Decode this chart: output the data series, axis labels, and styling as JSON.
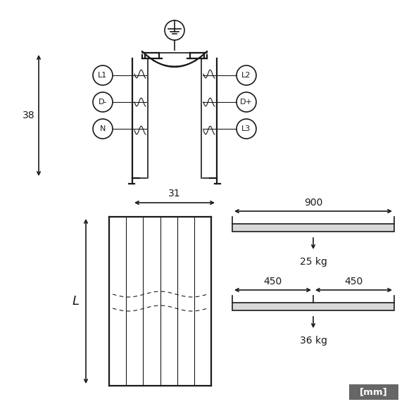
{
  "bg_color": "#ffffff",
  "line_color": "#1a1a1a",
  "mm_box_color": "#666666",
  "mm_text_color": "#ffffff",
  "labels_left": [
    "L1",
    "D-",
    "N"
  ],
  "labels_right": [
    "L2",
    "D+",
    "L3"
  ],
  "width_dim": "31",
  "height_dim": "38",
  "load1_dim": "900",
  "load1_weight": "25 kg",
  "load2_dim1": "450",
  "load2_dim2": "450",
  "load2_weight": "36 kg",
  "length_label": "L",
  "mm_label": "[mm]",
  "figsize": [
    5.91,
    5.91
  ],
  "dpi": 100
}
